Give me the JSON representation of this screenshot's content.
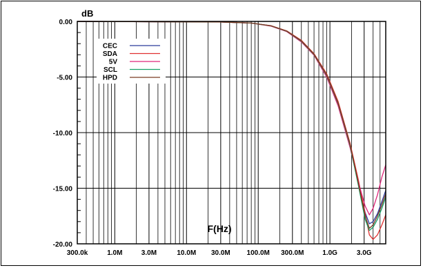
{
  "chart_data": {
    "type": "line",
    "title": "",
    "ylabel": "dB",
    "xlabel": "F(Hz)",
    "x_scale": "log",
    "xlim": [
      300000,
      6000000000
    ],
    "ylim": [
      -20,
      0
    ],
    "grid": true,
    "legend_position": "top-left",
    "x_ticks": [
      {
        "value": 300000,
        "label": "300.0k"
      },
      {
        "value": 1000000,
        "label": "1.0M"
      },
      {
        "value": 3000000,
        "label": "3.0M"
      },
      {
        "value": 10000000,
        "label": "10.0M"
      },
      {
        "value": 30000000,
        "label": "30.0M"
      },
      {
        "value": 100000000,
        "label": "100.0M"
      },
      {
        "value": 300000000,
        "label": "300.0M"
      },
      {
        "value": 1000000000,
        "label": "1.0G"
      },
      {
        "value": 3000000000,
        "label": "3.0G"
      }
    ],
    "y_ticks": [
      {
        "value": 0,
        "label": "0.00"
      },
      {
        "value": -5,
        "label": "-5.00"
      },
      {
        "value": -10,
        "label": "-10.00"
      },
      {
        "value": -15,
        "label": "-15.00"
      },
      {
        "value": -20,
        "label": "-20.00"
      }
    ],
    "series": [
      {
        "name": "CEC",
        "color": "#2b3a9a",
        "x": [
          300000,
          30000000,
          80000000,
          150000000,
          250000000,
          400000000,
          600000000,
          900000000,
          1300000000,
          1900000000,
          2500000000,
          3100000000,
          3550000000,
          4000000000,
          4600000000,
          5300000000,
          6000000000
        ],
        "y": [
          0,
          -0.05,
          -0.15,
          -0.4,
          -0.9,
          -1.8,
          -3.0,
          -4.9,
          -7.5,
          -11.2,
          -14.6,
          -17.2,
          -18.2,
          -18.0,
          -17.3,
          -16.2,
          -15.2
        ]
      },
      {
        "name": "SDA",
        "color": "#e03030",
        "x": [
          300000,
          30000000,
          80000000,
          150000000,
          250000000,
          400000000,
          600000000,
          900000000,
          1300000000,
          1900000000,
          2500000000,
          3100000000,
          3550000000,
          4000000000,
          4600000000,
          5300000000,
          6000000000
        ],
        "y": [
          0,
          -0.05,
          -0.15,
          -0.38,
          -0.85,
          -1.7,
          -2.9,
          -4.7,
          -7.2,
          -10.9,
          -14.3,
          -17.3,
          -19.2,
          -19.6,
          -19.2,
          -18.3,
          -17.4
        ]
      },
      {
        "name": "5V",
        "color": "#e0257a",
        "x": [
          300000,
          30000000,
          80000000,
          150000000,
          250000000,
          400000000,
          600000000,
          900000000,
          1300000000,
          1900000000,
          2500000000,
          3100000000,
          3550000000,
          4000000000,
          4600000000,
          5300000000,
          6000000000
        ],
        "y": [
          0,
          -0.05,
          -0.15,
          -0.42,
          -0.92,
          -1.85,
          -3.05,
          -5.0,
          -7.6,
          -11.3,
          -14.5,
          -16.6,
          -17.4,
          -16.8,
          -15.6,
          -14.0,
          -12.9
        ]
      },
      {
        "name": "SCL",
        "color": "#15a065",
        "x": [
          300000,
          30000000,
          80000000,
          150000000,
          250000000,
          400000000,
          600000000,
          900000000,
          1300000000,
          1900000000,
          2500000000,
          3100000000,
          3550000000,
          4000000000,
          4600000000,
          5300000000,
          6000000000
        ],
        "y": [
          0,
          -0.05,
          -0.15,
          -0.4,
          -0.88,
          -1.78,
          -2.98,
          -4.85,
          -7.4,
          -11.1,
          -14.8,
          -17.8,
          -18.8,
          -18.5,
          -17.8,
          -16.8,
          -15.8
        ]
      },
      {
        "name": "HPD",
        "color": "#7a3a22",
        "x": [
          300000,
          30000000,
          80000000,
          150000000,
          250000000,
          400000000,
          600000000,
          900000000,
          1300000000,
          1900000000,
          2500000000,
          3100000000,
          3550000000,
          4000000000,
          4600000000,
          5300000000,
          6000000000
        ],
        "y": [
          0,
          -0.05,
          -0.15,
          -0.39,
          -0.87,
          -1.75,
          -2.95,
          -4.8,
          -7.35,
          -11.0,
          -14.6,
          -17.5,
          -18.6,
          -18.3,
          -17.5,
          -16.5,
          -15.5
        ]
      }
    ]
  }
}
